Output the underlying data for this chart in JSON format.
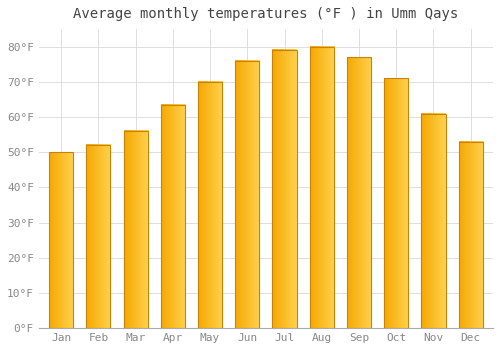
{
  "title": "Average monthly temperatures (°F ) in Umm Qays",
  "months": [
    "Jan",
    "Feb",
    "Mar",
    "Apr",
    "May",
    "Jun",
    "Jul",
    "Aug",
    "Sep",
    "Oct",
    "Nov",
    "Dec"
  ],
  "values": [
    50,
    52,
    56,
    63.5,
    70,
    76,
    79,
    80,
    77,
    71,
    61,
    53
  ],
  "bar_color_left": "#F5A800",
  "bar_color_right": "#FFD060",
  "bar_edge_color": "#C8820A",
  "ylim": [
    0,
    85
  ],
  "yticks": [
    0,
    10,
    20,
    30,
    40,
    50,
    60,
    70,
    80
  ],
  "ytick_labels": [
    "0°F",
    "10°F",
    "20°F",
    "30°F",
    "40°F",
    "50°F",
    "60°F",
    "70°F",
    "80°F"
  ],
  "background_color": "#FFFFFF",
  "grid_color": "#DDDDDD",
  "title_fontsize": 10,
  "tick_fontsize": 8,
  "tick_color": "#888888",
  "title_color": "#444444"
}
